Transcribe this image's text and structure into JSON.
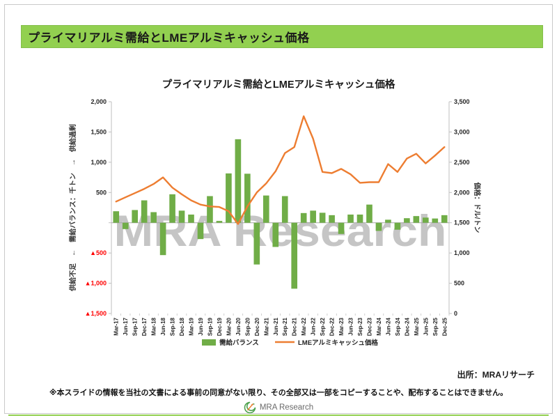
{
  "header": {
    "title": "プライマリアルミ需給とLMEアルミキャッシュ価格"
  },
  "chart_data": {
    "type": "bar",
    "title": "プライマリアルミ需給とLMEアルミキャッシュ価格",
    "watermark": "MRA Research",
    "watermark_color": "#c5c5c5",
    "gridlines": false,
    "legend_position": "bottom",
    "categories": [
      "Mar-17",
      "Jun-17",
      "Sep-17",
      "Dec-17",
      "Mar-18",
      "Jun-18",
      "Sep-18",
      "Dec-18",
      "Mar-19",
      "Jun-19",
      "Sep-19",
      "Dec-19",
      "Mar-20",
      "Jun-20",
      "Sep-20",
      "Dec-20",
      "Mar-21",
      "Jun-21",
      "Sep-21",
      "Dec-21",
      "Mar-22",
      "Jun-22",
      "Sep-22",
      "Dec-22",
      "Mar-23",
      "Jun-23",
      "Sep-23",
      "Dec-23",
      "Mar-24",
      "Jun-24",
      "Sep-24",
      "Dec-24",
      "Mar-25",
      "Jun-25",
      "Sep-25",
      "Dec-25"
    ],
    "series": [
      {
        "name": "需給バランス",
        "type": "bar",
        "axis": "left",
        "color": "#70AD47",
        "values": [
          190,
          -105,
          210,
          370,
          175,
          -535,
          470,
          200,
          135,
          -270,
          440,
          30,
          815,
          1380,
          810,
          -690,
          450,
          -400,
          440,
          -1090,
          160,
          200,
          165,
          125,
          -185,
          135,
          135,
          300,
          -135,
          50,
          -115,
          75,
          110,
          85,
          70,
          125
        ]
      },
      {
        "name": "LMEアルミキャッシュ価格",
        "type": "line",
        "axis": "right",
        "color": "#ED7D31",
        "values": [
          1850,
          1920,
          1990,
          2060,
          2140,
          2250,
          2080,
          1970,
          1870,
          1800,
          1770,
          1760,
          1690,
          1480,
          1770,
          2000,
          2150,
          2350,
          2650,
          2750,
          3260,
          2890,
          2340,
          2320,
          2390,
          2300,
          2160,
          2170,
          2170,
          2470,
          2340,
          2560,
          2640,
          2480,
          2610,
          2750
        ]
      }
    ],
    "left_axis": {
      "title": "供給不足　←　需給バランス：千トン　→　供給過剰",
      "min": -1500,
      "max": 2000,
      "tick_step": 500,
      "tick_labels": [
        "2,000",
        "1,500",
        "1,000",
        "500",
        "",
        "▲500",
        "▲1,000",
        "▲1,500"
      ],
      "negative_color": "#FF0000"
    },
    "right_axis": {
      "title": "価格：ドル/トン",
      "min": 0,
      "max": 3500,
      "tick_step": 500,
      "tick_labels": [
        "3,500",
        "3,000",
        "2,500",
        "2,000",
        "1,500",
        "1,000",
        "500",
        "0"
      ]
    }
  },
  "footer": {
    "source": "出所：MRAリサーチ",
    "disclaimer": "※本スライドの情報を当社の文書による事前の同意がない限り、その全部又は一部をコピーすることや、配布することはできません。",
    "logo_text": "MRA Research"
  }
}
